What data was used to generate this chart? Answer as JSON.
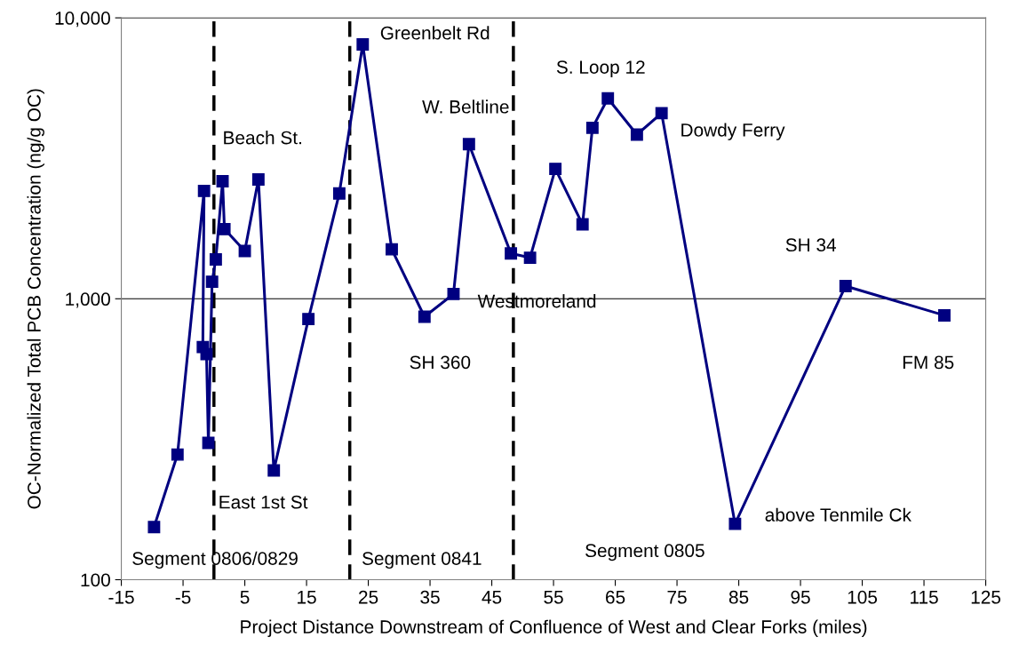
{
  "chart_data": {
    "type": "line",
    "xlabel": "Project Distance Downstream of Confluence of West and Clear Forks (miles)",
    "ylabel": "OC-Normalized Total PCB Concentration (ng/g OC)",
    "x": [
      -9.7,
      -5.9,
      -1.6,
      -1.8,
      -1.2,
      -0.9,
      -0.3,
      0.3,
      1.4,
      1.7,
      5.0,
      7.2,
      9.7,
      15.3,
      20.3,
      24.1,
      28.8,
      34.1,
      38.8,
      41.3,
      48.1,
      51.2,
      55.3,
      59.7,
      61.3,
      63.8,
      68.5,
      72.5,
      84.4,
      102.3,
      118.3
    ],
    "series": [
      {
        "color": "#000080",
        "values": [
          154,
          279,
          2420,
          673,
          635,
          307,
          1150,
          1380,
          2620,
          1770,
          1480,
          2660,
          245,
          847,
          2370,
          8040,
          1500,
          863,
          1040,
          3550,
          1450,
          1400,
          2900,
          1840,
          4060,
          5170,
          3840,
          4580,
          158,
          1110,
          873
        ]
      }
    ],
    "marker": "square",
    "line_style": "solid",
    "log": "y",
    "grid": "y",
    "legend": false,
    "xlim": [
      -15,
      125
    ],
    "xticks": [
      -15,
      -5,
      5,
      15,
      25,
      35,
      45,
      55,
      65,
      75,
      85,
      95,
      105,
      115,
      125
    ],
    "ylim": [
      100,
      10000
    ],
    "yticks": [
      {
        "value": 100,
        "label": "100"
      },
      {
        "value": 1000,
        "label": "1,000"
      },
      {
        "value": 10000,
        "label": "10,000"
      }
    ],
    "ref_lines": [
      {
        "axis": "x",
        "value": 0,
        "color": "#000000",
        "line_style": "dashed"
      },
      {
        "axis": "x",
        "value": 22,
        "color": "#000000",
        "line_style": "dashed"
      },
      {
        "axis": "x",
        "value": 48.5,
        "color": "#000000",
        "line_style": "dashed"
      }
    ],
    "annotations": [
      {
        "text": "Beach St.",
        "x": 1.4,
        "y": 2620
      },
      {
        "text": "Greenbelt Rd",
        "x": 24.1,
        "y": 8040
      },
      {
        "text": "W. Beltline",
        "x": 41.3,
        "y": 3550
      },
      {
        "text": "S. Loop 12",
        "x": 63.8,
        "y": 5170
      },
      {
        "text": "Dowdy Ferry",
        "x": 72.5,
        "y": 4580
      },
      {
        "text": "Westmoreland",
        "x": 48.1,
        "y": 1450
      },
      "SH 360",
      {
        "text": "East 1st St",
        "x": 9.7,
        "y": 245
      },
      {
        "text": "above Tenmile Ck",
        "x": 84.4,
        "y": 158
      },
      {
        "text": "SH 34",
        "x": 102.3,
        "y": 1110
      },
      "FM 85",
      "Segment 0806/0829",
      "Segment 0841",
      "Segment 0805"
    ]
  }
}
